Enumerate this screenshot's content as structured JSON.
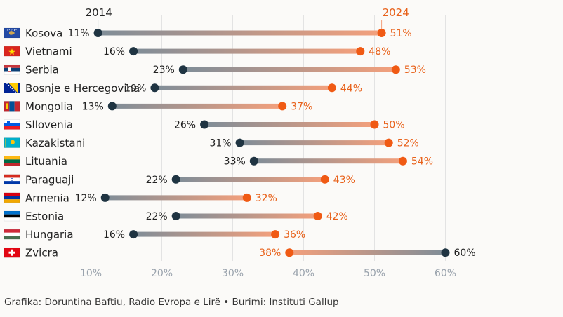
{
  "chart_data": {
    "type": "dumbbell",
    "series_labels": {
      "start": "2014",
      "end": "2024"
    },
    "colors": {
      "start": "#1f3442",
      "end": "#f05a14",
      "bar_dark": "#7f8d98",
      "bar_light": "#f4a07c"
    },
    "xlim": [
      0,
      60
    ],
    "xticks": [
      "10%",
      "20%",
      "30%",
      "40%",
      "50%",
      "60%"
    ],
    "rows": [
      {
        "country": "Kosova",
        "flag": "kosovo-flag",
        "v2014": 11,
        "v2024": 51,
        "l2014": "11%",
        "l2024": "51%"
      },
      {
        "country": "Vietnami",
        "flag": "vietnam-flag",
        "v2014": 16,
        "v2024": 48,
        "l2014": "16%",
        "l2024": "48%"
      },
      {
        "country": "Serbia",
        "flag": "serbia-flag",
        "v2014": 23,
        "v2024": 53,
        "l2014": "23%",
        "l2024": "53%"
      },
      {
        "country": "Bosnje e Hercegovina",
        "flag": "bosnia-flag",
        "v2014": 19,
        "v2024": 44,
        "l2014": "19%",
        "l2024": "44%"
      },
      {
        "country": "Mongolia",
        "flag": "mongolia-flag",
        "v2014": 13,
        "v2024": 37,
        "l2014": "13%",
        "l2024": "37%"
      },
      {
        "country": "Sllovenia",
        "flag": "slovenia-flag",
        "v2014": 26,
        "v2024": 50,
        "l2014": "26%",
        "l2024": "50%"
      },
      {
        "country": "Kazakistani",
        "flag": "kazakhstan-flag",
        "v2014": 31,
        "v2024": 52,
        "l2014": "31%",
        "l2024": "52%"
      },
      {
        "country": "Lituania",
        "flag": "lithuania-flag",
        "v2014": 33,
        "v2024": 54,
        "l2014": "33%",
        "l2024": "54%"
      },
      {
        "country": "Paraguaji",
        "flag": "paraguay-flag",
        "v2014": 22,
        "v2024": 43,
        "l2014": "22%",
        "l2024": "43%"
      },
      {
        "country": "Armenia",
        "flag": "armenia-flag",
        "v2014": 12,
        "v2024": 32,
        "l2014": "12%",
        "l2024": "32%"
      },
      {
        "country": "Estonia",
        "flag": "estonia-flag",
        "v2014": 22,
        "v2024": 42,
        "l2014": "22%",
        "l2024": "42%"
      },
      {
        "country": "Hungaria",
        "flag": "hungary-flag",
        "v2014": 16,
        "v2024": 36,
        "l2014": "16%",
        "l2024": "36%"
      },
      {
        "country": "Zvicra",
        "flag": "switzerland-flag",
        "v2014": 60,
        "v2024": 38,
        "l2014": "60%",
        "l2024": "38%"
      }
    ]
  },
  "credit": "Grafika: Doruntina Baftiu, Radio Evropa e Lirë • Burimi: Instituti Gallup"
}
